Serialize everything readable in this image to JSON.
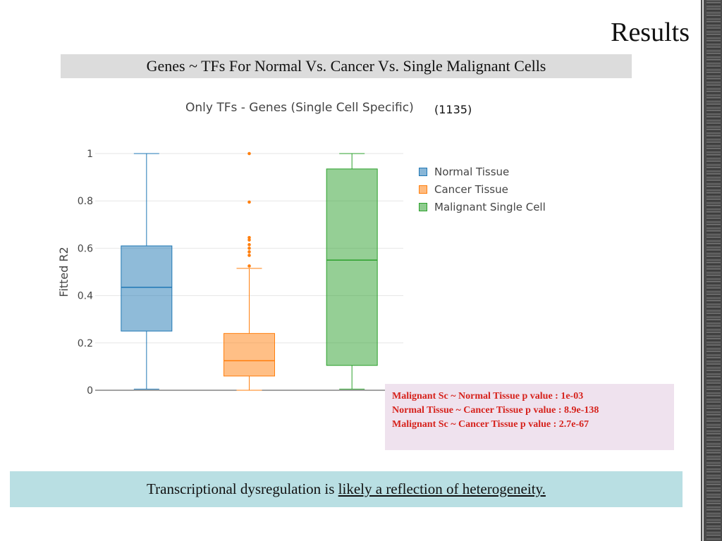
{
  "slide": {
    "title": "Results",
    "subtitle": "Genes ~ TFs For Normal Vs. Cancer Vs. Single Malignant Cells",
    "bottom_text_prefix": "Transcriptional dysregulation is ",
    "bottom_text_underlined": "likely a reflection of heterogeneity."
  },
  "pvalues": [
    "Malignant Sc ~ Normal Tissue p value : 1e-03",
    "Normal Tissue ~ Cancer Tissue p value : 8.9e-138",
    "Malignant Sc ~ Cancer Tissue p value : 2.7e-67"
  ],
  "colors": {
    "normal": "#1f77b4",
    "cancer": "#ff7f0e",
    "malignant": "#2ca02c",
    "pvalue_text": "#d6221c"
  },
  "chart_data": {
    "type": "box",
    "title": "Only TFs - Genes (Single Cell Specific)",
    "count_label": "(1135)",
    "xlabel": "",
    "ylabel": "Fitted R2",
    "ylim": [
      0,
      1
    ],
    "yticks": [
      "0",
      "0.2",
      "0.4",
      "0.6",
      "0.8",
      "1"
    ],
    "grid": true,
    "legend_position": "right",
    "series": [
      {
        "name": "Normal Tissue",
        "color": "#1f77b4",
        "min": 0.005,
        "q1": 0.25,
        "median": 0.435,
        "q3": 0.61,
        "max": 1.0,
        "outliers": []
      },
      {
        "name": "Cancer Tissue",
        "color": "#ff7f0e",
        "min": 0.0,
        "q1": 0.06,
        "median": 0.125,
        "q3": 0.24,
        "max": 0.515,
        "outliers": [
          1.0,
          0.795,
          0.645,
          0.635,
          0.615,
          0.6,
          0.585,
          0.57,
          0.525
        ]
      },
      {
        "name": "Malignant Single Cell",
        "color": "#2ca02c",
        "min": 0.005,
        "q1": 0.105,
        "median": 0.55,
        "q3": 0.935,
        "max": 1.0,
        "outliers": []
      }
    ]
  }
}
